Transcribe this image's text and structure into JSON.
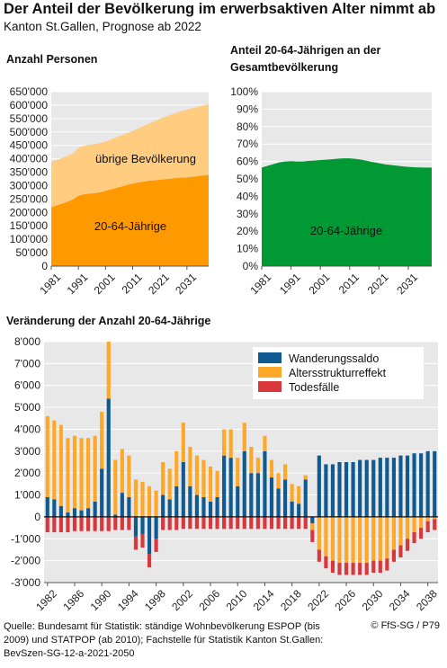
{
  "header": {
    "title": "Der Anteil der Bevölkerung im erwerbsaktiven Alter nimmt ab",
    "subtitle": "Kanton St.Gallen, Prognose ab 2022"
  },
  "footer": {
    "source": "Quelle: Bundesamt für Statistik: ständige Wohnbevölkerung ESPOP (bis 2009) und STATPOP (ab 2010); Fachstelle für Statistik Kanton St.Gallen: BevSzen-SG-12-a-2021-2050",
    "copyright": "© FfS-SG / P79"
  },
  "colors": {
    "working_age": "#ff9900",
    "other_pop": "#ffcc80",
    "share": "#009933",
    "migration": "#0f5a91",
    "age_structure": "#ffa726",
    "deaths": "#d8373c",
    "panel_bg": "#e8e8e8",
    "grid": "#ffffff"
  },
  "chart_data": [
    {
      "type": "area",
      "title": "Anzahl Personen",
      "x": [
        1981,
        1983,
        1985,
        1987,
        1989,
        1991,
        1993,
        1995,
        1997,
        1999,
        2001,
        2003,
        2005,
        2007,
        2009,
        2011,
        2013,
        2015,
        2017,
        2019,
        2021,
        2023,
        2025,
        2027,
        2029,
        2031,
        2033,
        2035,
        2037,
        2039
      ],
      "series": [
        {
          "name": "20-64-Jährige",
          "values": [
            220000,
            226000,
            233000,
            240000,
            249000,
            262000,
            268000,
            270000,
            272000,
            275000,
            281000,
            286000,
            292000,
            297000,
            303000,
            308000,
            312000,
            315000,
            318000,
            320000,
            322000,
            324000,
            326000,
            328000,
            330000,
            331000,
            333000,
            335000,
            338000,
            340000
          ]
        },
        {
          "name": "übrige Bevölkerung",
          "values": [
            170000,
            169000,
            170000,
            171000,
            172000,
            178000,
            181000,
            182000,
            182000,
            184000,
            183000,
            186000,
            189000,
            191000,
            193000,
            196000,
            201000,
            207000,
            213000,
            220000,
            227000,
            233000,
            238000,
            243000,
            248000,
            252000,
            256000,
            259000,
            261000,
            263000
          ]
        }
      ],
      "xticks": [
        "1981",
        "1991",
        "2001",
        "2011",
        "2021",
        "2031"
      ],
      "yticks": [
        "0",
        "50'000",
        "100'000",
        "150'000",
        "200'000",
        "250'000",
        "300'000",
        "350'000",
        "400'000",
        "450'000",
        "500'000",
        "550'000",
        "600'000",
        "650'000"
      ],
      "ylim": [
        0,
        650000
      ]
    },
    {
      "type": "area",
      "title": "Anteil 20-64-Jährigen an der Gesamtbevölkerung",
      "x": [
        1981,
        1983,
        1985,
        1987,
        1989,
        1991,
        1993,
        1995,
        1997,
        1999,
        2001,
        2003,
        2005,
        2007,
        2009,
        2011,
        2013,
        2015,
        2017,
        2019,
        2021,
        2023,
        2025,
        2027,
        2029,
        2031,
        2033,
        2035,
        2037,
        2039
      ],
      "series": [
        {
          "name": "20-64-Jährige",
          "values": [
            56.5,
            57.5,
            58.5,
            59.5,
            60.0,
            60.2,
            60.0,
            60.0,
            60.3,
            60.5,
            60.8,
            61.0,
            61.3,
            61.6,
            61.8,
            61.8,
            61.5,
            61.0,
            60.3,
            59.6,
            59.0,
            58.4,
            58.0,
            57.6,
            57.2,
            56.9,
            56.7,
            56.6,
            56.5,
            56.5
          ]
        }
      ],
      "xticks": [
        "1981",
        "1991",
        "2001",
        "2011",
        "2021",
        "2031"
      ],
      "yticks": [
        "0%",
        "10%",
        "20%",
        "30%",
        "40%",
        "50%",
        "60%",
        "70%",
        "80%",
        "90%",
        "100%"
      ],
      "ylim": [
        0,
        100
      ]
    },
    {
      "type": "bar",
      "title": "Veränderung der Anzahl 20-64-Jährige",
      "categories": [
        1982,
        1983,
        1984,
        1985,
        1986,
        1987,
        1988,
        1989,
        1990,
        1991,
        1992,
        1993,
        1994,
        1995,
        1996,
        1997,
        1998,
        1999,
        2000,
        2001,
        2002,
        2003,
        2004,
        2005,
        2006,
        2007,
        2008,
        2009,
        2010,
        2011,
        2012,
        2013,
        2014,
        2015,
        2016,
        2017,
        2018,
        2019,
        2020,
        2021,
        2022,
        2023,
        2024,
        2025,
        2026,
        2027,
        2028,
        2029,
        2030,
        2031,
        2032,
        2033,
        2034,
        2035,
        2036,
        2037,
        2038,
        2039
      ],
      "series": [
        {
          "name": "Wanderungssaldo",
          "values": [
            900,
            800,
            500,
            200,
            400,
            300,
            400,
            700,
            2200,
            5400,
            100,
            1100,
            900,
            -900,
            -800,
            -1700,
            -1000,
            1000,
            800,
            1400,
            2500,
            1400,
            1000,
            900,
            700,
            900,
            2800,
            2700,
            1400,
            3000,
            2000,
            2000,
            3000,
            1800,
            1300,
            1700,
            700,
            600,
            1700,
            -300,
            2800,
            2400,
            2400,
            2500,
            2500,
            2500,
            2600,
            2600,
            2600,
            2700,
            2700,
            2700,
            2800,
            2800,
            2900,
            2900,
            3000,
            3000
          ]
        },
        {
          "name": "Altersstrukturreffekt",
          "values": [
            3700,
            3600,
            3700,
            3400,
            3300,
            3300,
            3200,
            3000,
            2600,
            2600,
            2500,
            2000,
            1900,
            1700,
            1600,
            1400,
            1200,
            1500,
            1400,
            1600,
            1800,
            1800,
            1800,
            1700,
            1600,
            1200,
            1200,
            1300,
            1300,
            1300,
            1200,
            700,
            700,
            800,
            700,
            700,
            800,
            800,
            200,
            -300,
            -1500,
            -1800,
            -2000,
            -2100,
            -2100,
            -2100,
            -2100,
            -2100,
            -2000,
            -2000,
            -1900,
            -1500,
            -1300,
            -1000,
            -700,
            -500,
            -200,
            -100
          ]
        },
        {
          "name": "Todesfälle",
          "values": [
            -700,
            -700,
            -700,
            -700,
            -650,
            -650,
            -650,
            -650,
            -650,
            -650,
            -600,
            -600,
            -600,
            -600,
            -600,
            -600,
            -600,
            -600,
            -600,
            -600,
            -550,
            -550,
            -550,
            -550,
            -550,
            -550,
            -550,
            -550,
            -550,
            -550,
            -550,
            -550,
            -550,
            -550,
            -550,
            -550,
            -550,
            -550,
            -550,
            -550,
            -550,
            -550,
            -550,
            -550,
            -550,
            -550,
            -550,
            -550,
            -550,
            -550,
            -550,
            -550,
            -550,
            -550,
            -500,
            -500,
            -500,
            -500
          ]
        }
      ],
      "xticks": [
        "1982",
        "1986",
        "1990",
        "1994",
        "1998",
        "2002",
        "2006",
        "2010",
        "2014",
        "2018",
        "2022",
        "2026",
        "2030",
        "2034",
        "2038"
      ],
      "yticks": [
        "-3'000",
        "-2'000",
        "-1'000",
        "0",
        "1'000",
        "2'000",
        "3'000",
        "4'000",
        "5'000",
        "6'000",
        "7'000",
        "8'000"
      ],
      "ylim": [
        -3000,
        8000
      ],
      "legend": "top-right"
    }
  ]
}
